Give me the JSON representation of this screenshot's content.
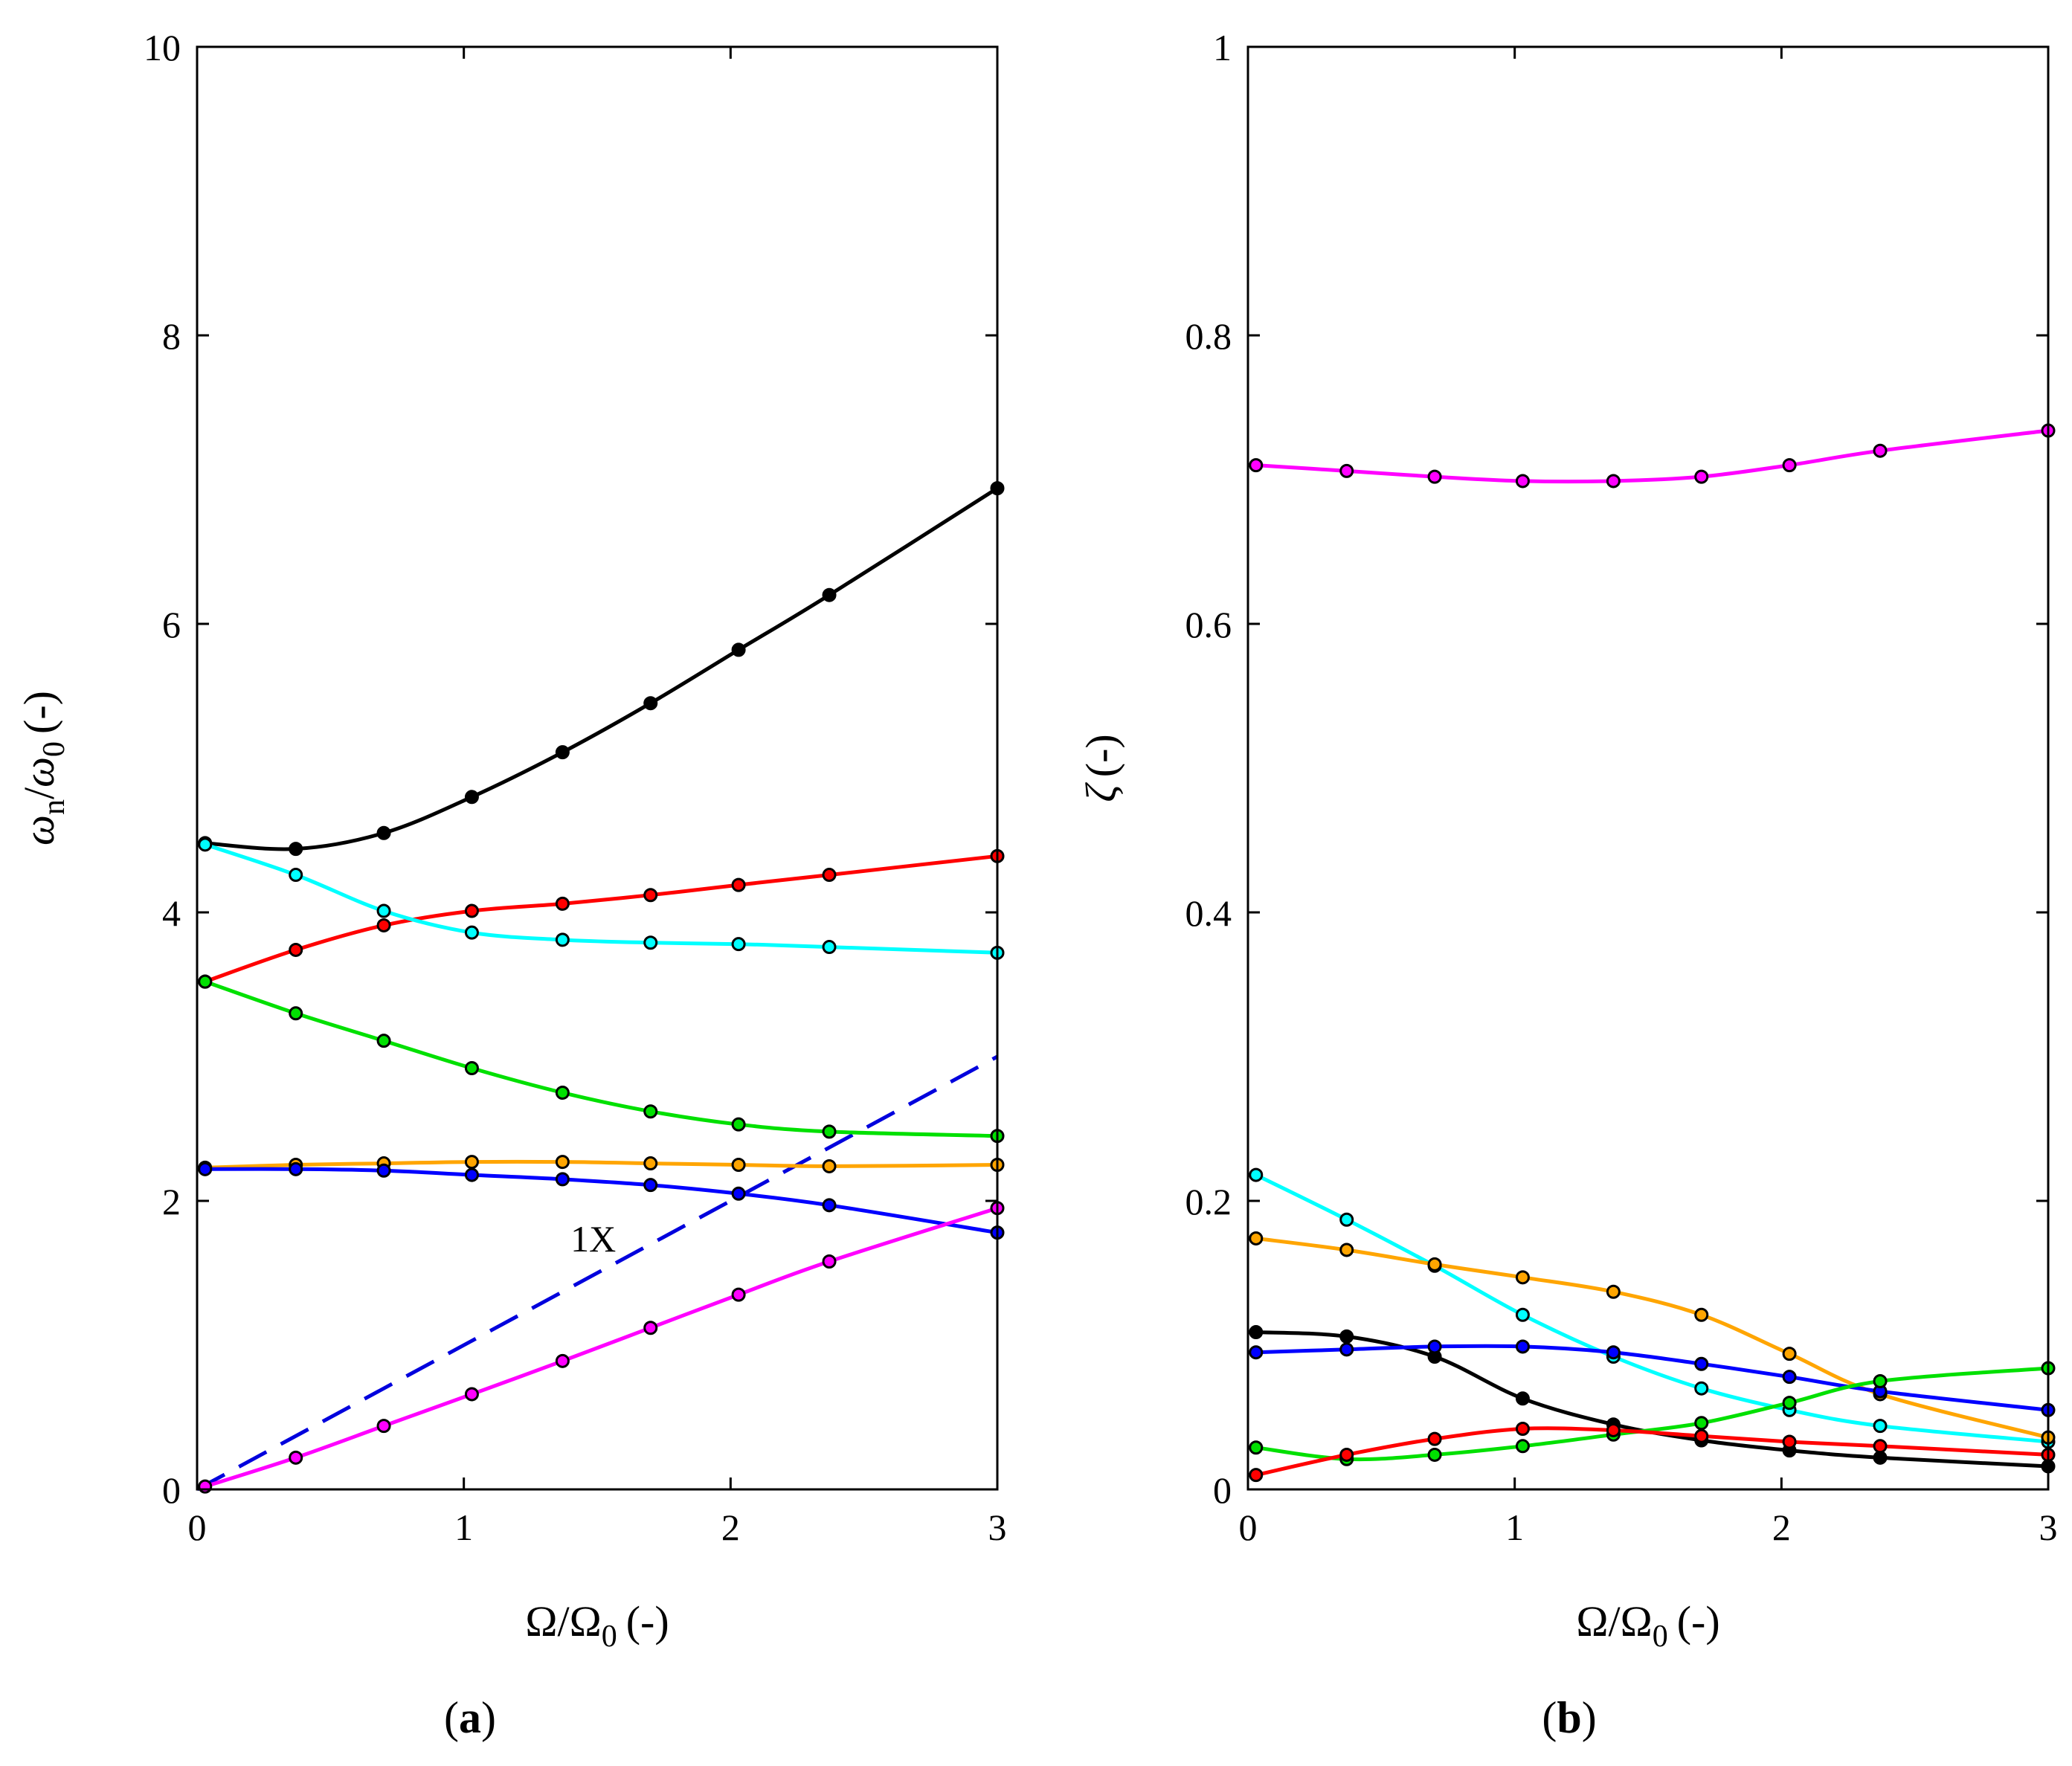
{
  "colors": {
    "black": "#000000",
    "red": "#ff0000",
    "cyan": "#00ffff",
    "green": "#00e000",
    "orange": "#ffa500",
    "blue": "#0000ff",
    "magenta": "#ff00ff",
    "dash": "#0000dd"
  },
  "chart_data": [
    {
      "id": "a",
      "type": "line",
      "panel_label": {
        "open": "(",
        "letter": "a",
        "close": ")"
      },
      "xlabel": "Ω/Ω",
      "xlabel_sub": "0",
      "xlabel_unit": "(-)",
      "ylabel_parts": {
        "w1": "ω",
        "sub1": "n",
        "slash": "/",
        "w2": "ω",
        "sub2": "0",
        "unit": "(-)"
      },
      "xlim": [
        0,
        3
      ],
      "ylim": [
        0,
        10
      ],
      "xticks": [
        0,
        1,
        2,
        3
      ],
      "xtick_labels": [
        "0",
        "1",
        "2",
        "3"
      ],
      "yticks": [
        0,
        2,
        4,
        6,
        8,
        10
      ],
      "ytick_labels": [
        "0",
        "2",
        "4",
        "6",
        "8",
        "10"
      ],
      "x": [
        0.03,
        0.37,
        0.7,
        1.03,
        1.37,
        1.7,
        2.03,
        2.37,
        3.0
      ],
      "series": [
        {
          "name": "black",
          "color": "black",
          "values": [
            4.48,
            4.44,
            4.55,
            4.8,
            5.11,
            5.45,
            5.82,
            6.2,
            6.94
          ]
        },
        {
          "name": "red",
          "color": "red",
          "values": [
            3.52,
            3.74,
            3.91,
            4.01,
            4.06,
            4.12,
            4.19,
            4.26,
            4.39
          ]
        },
        {
          "name": "cyan",
          "color": "cyan",
          "values": [
            4.47,
            4.26,
            4.01,
            3.86,
            3.81,
            3.79,
            3.78,
            3.76,
            3.72
          ]
        },
        {
          "name": "green",
          "color": "green",
          "values": [
            3.52,
            3.3,
            3.11,
            2.92,
            2.75,
            2.62,
            2.53,
            2.48,
            2.45
          ]
        },
        {
          "name": "orange",
          "color": "orange",
          "values": [
            2.23,
            2.25,
            2.26,
            2.27,
            2.27,
            2.26,
            2.25,
            2.24,
            2.25
          ]
        },
        {
          "name": "blue",
          "color": "blue",
          "values": [
            2.22,
            2.22,
            2.21,
            2.18,
            2.15,
            2.11,
            2.05,
            1.97,
            1.78
          ]
        },
        {
          "name": "magenta",
          "color": "magenta",
          "values": [
            0.02,
            0.22,
            0.44,
            0.66,
            0.89,
            1.12,
            1.35,
            1.58,
            1.95
          ]
        }
      ],
      "reference_line": {
        "name": "1X",
        "label": "1X",
        "color": "dash",
        "x": [
          0,
          3
        ],
        "values": [
          0,
          3.0
        ],
        "label_x": 1.4,
        "label_y": 1.65
      }
    },
    {
      "id": "b",
      "type": "line",
      "panel_label": {
        "open": "(",
        "letter": "b",
        "close": ")"
      },
      "xlabel": "Ω/Ω",
      "xlabel_sub": "0",
      "xlabel_unit": "(-)",
      "ylabel_parts": {
        "sym": "ζ",
        "unit": "(-)"
      },
      "xlim": [
        0,
        3
      ],
      "ylim": [
        0,
        1
      ],
      "xticks": [
        0,
        1,
        2,
        3
      ],
      "xtick_labels": [
        "0",
        "1",
        "2",
        "3"
      ],
      "yticks": [
        0,
        0.2,
        0.4,
        0.6,
        0.8,
        1.0
      ],
      "ytick_labels": [
        "0",
        "0.2",
        "0.4",
        "0.6",
        "0.8",
        "1"
      ],
      "x": [
        0.03,
        0.37,
        0.7,
        1.03,
        1.37,
        1.7,
        2.03,
        2.37,
        3.0
      ],
      "series": [
        {
          "name": "magenta",
          "color": "magenta",
          "values": [
            0.71,
            0.706,
            0.702,
            0.699,
            0.699,
            0.702,
            0.71,
            0.72,
            0.734
          ]
        },
        {
          "name": "cyan",
          "color": "cyan",
          "values": [
            0.218,
            0.187,
            0.155,
            0.121,
            0.092,
            0.07,
            0.055,
            0.044,
            0.033
          ]
        },
        {
          "name": "orange",
          "color": "orange",
          "values": [
            0.174,
            0.166,
            0.156,
            0.147,
            0.137,
            0.121,
            0.094,
            0.066,
            0.036
          ]
        },
        {
          "name": "black",
          "color": "black",
          "values": [
            0.109,
            0.106,
            0.092,
            0.063,
            0.045,
            0.034,
            0.027,
            0.022,
            0.016
          ]
        },
        {
          "name": "blue",
          "color": "blue",
          "values": [
            0.095,
            0.097,
            0.099,
            0.099,
            0.095,
            0.087,
            0.078,
            0.068,
            0.055
          ]
        },
        {
          "name": "green",
          "color": "green",
          "values": [
            0.029,
            0.021,
            0.024,
            0.03,
            0.038,
            0.046,
            0.06,
            0.075,
            0.084
          ]
        },
        {
          "name": "red",
          "color": "red",
          "values": [
            0.01,
            0.024,
            0.035,
            0.042,
            0.041,
            0.037,
            0.033,
            0.03,
            0.024
          ]
        }
      ]
    }
  ]
}
